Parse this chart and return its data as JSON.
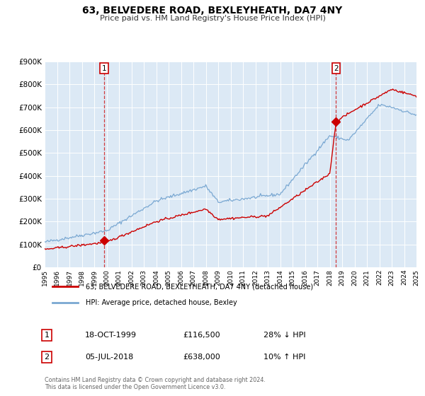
{
  "title": "63, BELVEDERE ROAD, BEXLEYHEATH, DA7 4NY",
  "subtitle": "Price paid vs. HM Land Registry's House Price Index (HPI)",
  "plot_bg_color": "#dce9f5",
  "outer_bg_color": "#ffffff",
  "red_line_color": "#cc0000",
  "blue_line_color": "#7aa8d2",
  "sale1_date_num": 1999.8,
  "sale1_price": 116500,
  "sale1_label": "1",
  "sale1_date_str": "18-OCT-1999",
  "sale1_pct": "28% ↓ HPI",
  "sale2_date_num": 2018.51,
  "sale2_price": 638000,
  "sale2_label": "2",
  "sale2_date_str": "05-JUL-2018",
  "sale2_pct": "10% ↑ HPI",
  "ylim_min": 0,
  "ylim_max": 900000,
  "xlim_min": 1995,
  "xlim_max": 2025,
  "legend_label_red": "63, BELVEDERE ROAD, BEXLEYHEATH, DA7 4NY (detached house)",
  "legend_label_blue": "HPI: Average price, detached house, Bexley",
  "footnote_line1": "Contains HM Land Registry data © Crown copyright and database right 2024.",
  "footnote_line2": "This data is licensed under the Open Government Licence v3.0."
}
